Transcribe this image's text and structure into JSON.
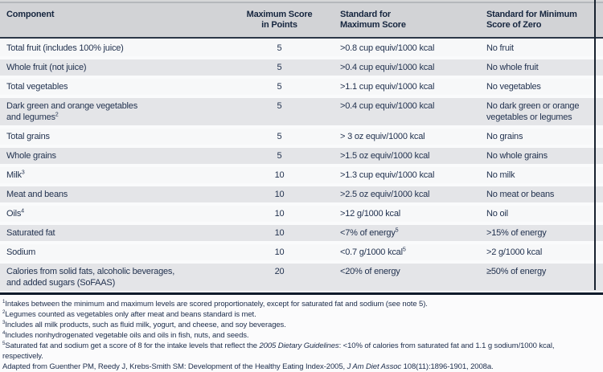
{
  "table": {
    "header_names": [
      "column-header-component",
      "column-header-max-score",
      "column-header-standard-max",
      "column-header-standard-zero"
    ],
    "headers": [
      {
        "lines": [
          [
            {
              "t": "Component"
            }
          ]
        ]
      },
      {
        "lines": [
          [
            {
              "t": "Maximum Score"
            }
          ],
          [
            {
              "t": "in Points"
            }
          ]
        ]
      },
      {
        "lines": [
          [
            {
              "t": "Standard for"
            }
          ],
          [
            {
              "t": "Maximum Score"
            }
          ]
        ]
      },
      {
        "lines": [
          [
            {
              "t": "Standard for Minimum"
            }
          ],
          [
            {
              "t": "Score of Zero"
            }
          ]
        ]
      }
    ],
    "rows": [
      {
        "component": [
          [
            {
              "t": "Total fruit (includes 100% juice)"
            }
          ]
        ],
        "max_score": [
          [
            {
              "t": "5"
            }
          ]
        ],
        "standard_max": [
          [
            {
              "t": ">0.8 cup equiv/1000 kcal"
            }
          ]
        ],
        "standard_zero": [
          [
            {
              "t": "No fruit"
            }
          ]
        ]
      },
      {
        "component": [
          [
            {
              "t": "Whole fruit (not juice)"
            }
          ]
        ],
        "max_score": [
          [
            {
              "t": "5"
            }
          ]
        ],
        "standard_max": [
          [
            {
              "t": ">0.4 cup equiv/1000 kcal"
            }
          ]
        ],
        "standard_zero": [
          [
            {
              "t": "No whole fruit"
            }
          ]
        ]
      },
      {
        "component": [
          [
            {
              "t": "Total vegetables"
            }
          ]
        ],
        "max_score": [
          [
            {
              "t": "5"
            }
          ]
        ],
        "standard_max": [
          [
            {
              "t": ">1.1 cup equiv/1000 kcal"
            }
          ]
        ],
        "standard_zero": [
          [
            {
              "t": "No vegetables"
            }
          ]
        ]
      },
      {
        "component": [
          [
            {
              "t": "Dark green and orange vegetables"
            }
          ],
          [
            {
              "t": "and legumes"
            },
            {
              "t": "2",
              "sup": true
            }
          ]
        ],
        "max_score": [
          [
            {
              "t": "5"
            }
          ]
        ],
        "standard_max": [
          [
            {
              "t": ">0.4 cup equiv/1000 kcal"
            }
          ]
        ],
        "standard_zero": [
          [
            {
              "t": "No dark green or orange"
            }
          ],
          [
            {
              "t": "vegetables or legumes"
            }
          ]
        ]
      },
      {
        "component": [
          [
            {
              "t": "Total grains"
            }
          ]
        ],
        "max_score": [
          [
            {
              "t": "5"
            }
          ]
        ],
        "standard_max": [
          [
            {
              "t": "> 3 oz equiv/1000 kcal"
            }
          ]
        ],
        "standard_zero": [
          [
            {
              "t": "No grains"
            }
          ]
        ]
      },
      {
        "component": [
          [
            {
              "t": "Whole grains"
            }
          ]
        ],
        "max_score": [
          [
            {
              "t": "5"
            }
          ]
        ],
        "standard_max": [
          [
            {
              "t": ">1.5 oz equiv/1000 kcal"
            }
          ]
        ],
        "standard_zero": [
          [
            {
              "t": "No whole grains"
            }
          ]
        ]
      },
      {
        "component": [
          [
            {
              "t": "Milk"
            },
            {
              "t": "3",
              "sup": true
            }
          ]
        ],
        "max_score": [
          [
            {
              "t": "10"
            }
          ]
        ],
        "standard_max": [
          [
            {
              "t": ">1.3 cup equiv/1000 kcal"
            }
          ]
        ],
        "standard_zero": [
          [
            {
              "t": "No milk"
            }
          ]
        ]
      },
      {
        "component": [
          [
            {
              "t": "Meat and beans"
            }
          ]
        ],
        "max_score": [
          [
            {
              "t": "10"
            }
          ]
        ],
        "standard_max": [
          [
            {
              "t": ">2.5 oz equiv/1000 kcal"
            }
          ]
        ],
        "standard_zero": [
          [
            {
              "t": "No meat or beans"
            }
          ]
        ]
      },
      {
        "component": [
          [
            {
              "t": "Oils"
            },
            {
              "t": "4",
              "sup": true
            }
          ]
        ],
        "max_score": [
          [
            {
              "t": "10"
            }
          ]
        ],
        "standard_max": [
          [
            {
              "t": ">12 g/1000 kcal"
            }
          ]
        ],
        "standard_zero": [
          [
            {
              "t": "No oil"
            }
          ]
        ]
      },
      {
        "component": [
          [
            {
              "t": "Saturated fat"
            }
          ]
        ],
        "max_score": [
          [
            {
              "t": "10"
            }
          ]
        ],
        "standard_max": [
          [
            {
              "t": "<7% of energy"
            },
            {
              "t": "5",
              "sup": true
            }
          ]
        ],
        "standard_zero": [
          [
            {
              "t": ">15% of energy"
            }
          ]
        ]
      },
      {
        "component": [
          [
            {
              "t": "Sodium"
            }
          ]
        ],
        "max_score": [
          [
            {
              "t": "10"
            }
          ]
        ],
        "standard_max": [
          [
            {
              "t": "<0.7 g/1000 kcal"
            },
            {
              "t": "5",
              "sup": true
            }
          ]
        ],
        "standard_zero": [
          [
            {
              "t": ">2 g/1000 kcal"
            }
          ]
        ]
      },
      {
        "component": [
          [
            {
              "t": "Calories from solid fats, alcoholic beverages,"
            }
          ],
          [
            {
              "t": "and added sugars (SoFAAS)"
            }
          ]
        ],
        "max_score": [
          [
            {
              "t": "20"
            }
          ]
        ],
        "standard_max": [
          [
            {
              "t": "<20% of energy"
            }
          ]
        ],
        "standard_zero": [
          [
            {
              "t": "≥50% of energy"
            }
          ]
        ]
      }
    ]
  },
  "footnotes": {
    "lines": [
      [
        {
          "t": "1",
          "sup": true
        },
        {
          "t": "Intakes between the minimum and maximum levels are scored proportionately, except for saturated fat and sodium (see note 5)."
        }
      ],
      [
        {
          "t": "2",
          "sup": true
        },
        {
          "t": "Legumes counted as vegetables only after meat and beans standard is met."
        }
      ],
      [
        {
          "t": "3",
          "sup": true
        },
        {
          "t": "Includes all milk products, such as fluid milk, yogurt, and cheese, and soy beverages."
        }
      ],
      [
        {
          "t": "4",
          "sup": true
        },
        {
          "t": "Includes nonhydrogenated vegetable oils and oils in fish, nuts, and seeds."
        }
      ],
      [
        {
          "t": "5",
          "sup": true
        },
        {
          "t": "Saturated fat and sodium get a score of 8 for the intake levels that reflect the "
        },
        {
          "t": "2005 Dietary Guidelines",
          "i": true
        },
        {
          "t": ": <10% of calories from saturated fat and 1.1 g sodium/1000 kcal,"
        }
      ],
      [
        {
          "t": "respectively."
        }
      ],
      [
        {
          "t": "Adapted from Guenther PM, Reedy J, Krebs-Smith SM: Development of the Healthy Eating Index-2005, "
        },
        {
          "t": "J Am Diet Assoc",
          "i": true
        },
        {
          "t": " 108(11):1896-1901, 2008a."
        }
      ]
    ]
  },
  "colors": {
    "header_bg": "#d2d3d6",
    "row_light": "#f7f8f9",
    "row_shaded": "#e4e5e8",
    "text_navy": "#20304e",
    "rule_dark": "#0f1b2b"
  }
}
